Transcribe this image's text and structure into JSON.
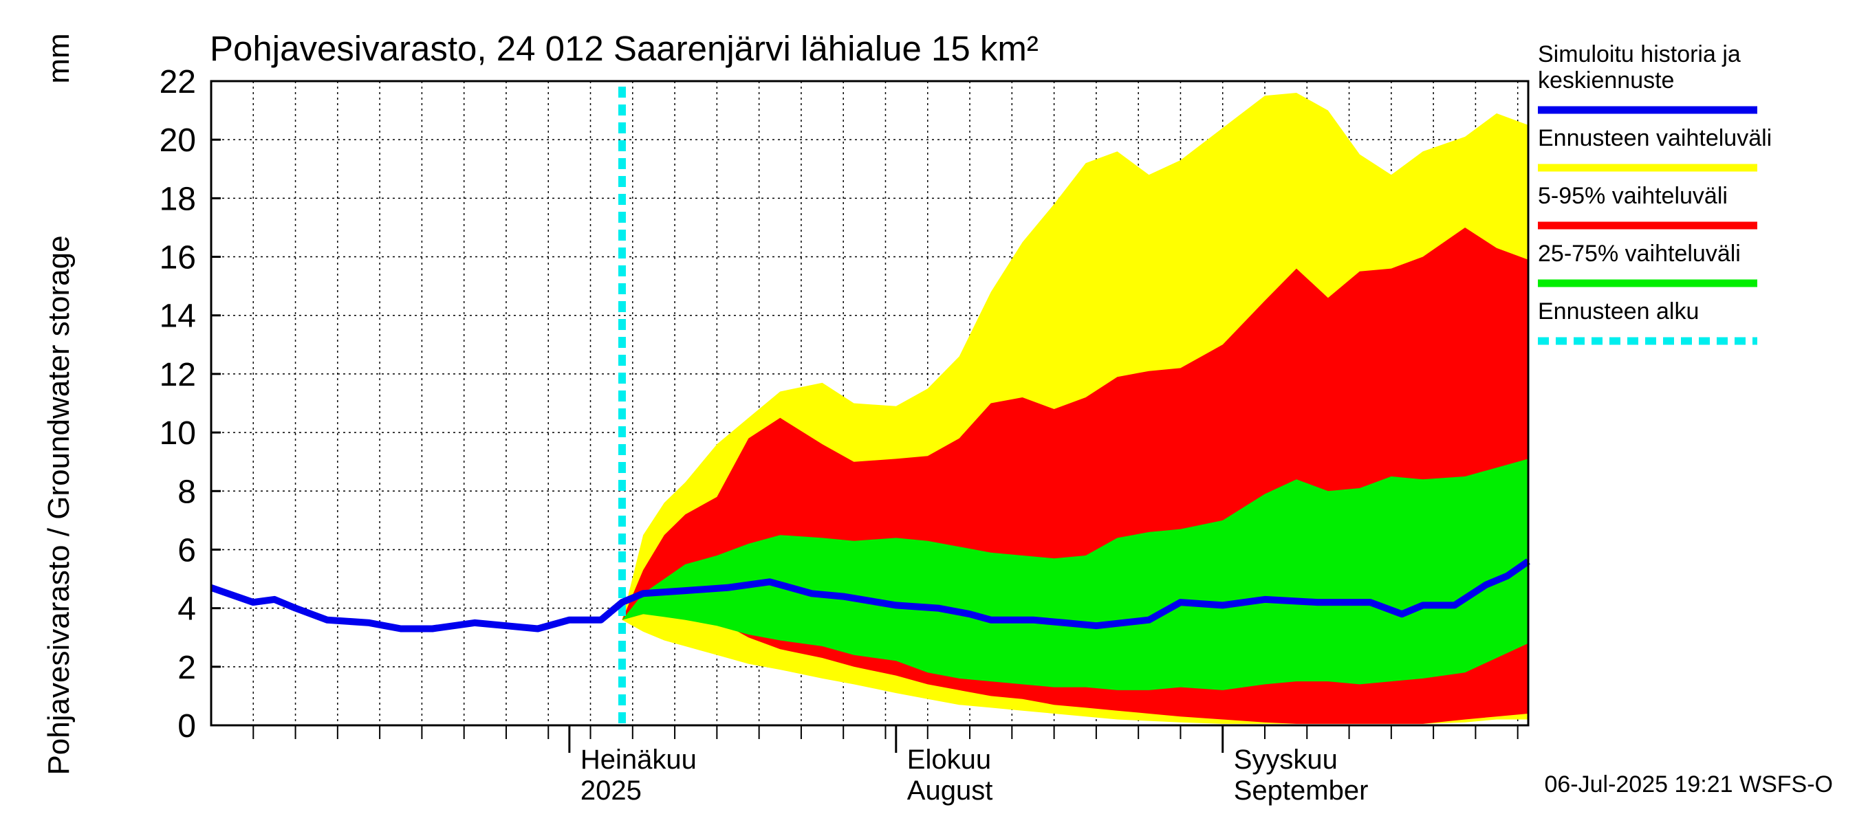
{
  "chart_data": {
    "type": "area",
    "title": "Pohjavesivarasto, 24 012 Saarenjärvi lähialue 15 km²",
    "ylabel": "Pohjavesivarasto / Groundwater storage",
    "yunit": "mm",
    "xlabel": "",
    "ylim": [
      0,
      22
    ],
    "yticks": [
      0,
      2,
      4,
      6,
      8,
      10,
      12,
      14,
      16,
      18,
      20,
      22
    ],
    "xlim": [
      "2025-05-28",
      "2025-09-30"
    ],
    "month_labels": [
      {
        "date": "2025-07-01",
        "line1": "Heinäkuu",
        "line2": "2025"
      },
      {
        "date": "2025-08-01",
        "line1": "Elokuu",
        "line2": "August"
      },
      {
        "date": "2025-09-01",
        "line1": "Syyskuu",
        "line2": "September"
      }
    ],
    "forecast_start": "2025-07-06",
    "grid": true,
    "legend_position": "right",
    "timestamp": "06-Jul-2025 19:21 WSFS-O",
    "colors": {
      "median": "#0000ee",
      "full_range": "#ffff00",
      "p5_95": "#ff0000",
      "p25_75": "#00ee00",
      "forecast_start": "#00eeee"
    },
    "series": [
      {
        "name": "Simuloitu historia ja keskiennuste",
        "key": "median",
        "x": [
          "2025-05-28",
          "2025-06-01",
          "2025-06-03",
          "2025-06-05",
          "2025-06-08",
          "2025-06-12",
          "2025-06-15",
          "2025-06-18",
          "2025-06-22",
          "2025-06-25",
          "2025-06-28",
          "2025-07-01",
          "2025-07-04",
          "2025-07-06",
          "2025-07-08",
          "2025-07-12",
          "2025-07-16",
          "2025-07-20",
          "2025-07-24",
          "2025-07-27",
          "2025-08-01",
          "2025-08-05",
          "2025-08-08",
          "2025-08-10",
          "2025-08-14",
          "2025-08-17",
          "2025-08-20",
          "2025-08-25",
          "2025-08-28",
          "2025-09-01",
          "2025-09-05",
          "2025-09-10",
          "2025-09-15",
          "2025-09-18",
          "2025-09-20",
          "2025-09-23",
          "2025-09-26",
          "2025-09-28",
          "2025-09-30"
        ],
        "y": [
          4.7,
          4.2,
          4.3,
          4.0,
          3.6,
          3.5,
          3.3,
          3.3,
          3.5,
          3.4,
          3.3,
          3.6,
          3.6,
          4.2,
          4.5,
          4.6,
          4.7,
          4.9,
          4.5,
          4.4,
          4.1,
          4.0,
          3.8,
          3.6,
          3.6,
          3.5,
          3.4,
          3.6,
          4.2,
          4.1,
          4.3,
          4.2,
          4.2,
          3.8,
          4.1,
          4.1,
          4.8,
          5.1,
          5.6
        ]
      },
      {
        "name": "Ennusteen vaihteluväli",
        "key": "full_range",
        "x": [
          "2025-07-06",
          "2025-07-08",
          "2025-07-10",
          "2025-07-12",
          "2025-07-15",
          "2025-07-18",
          "2025-07-21",
          "2025-07-25",
          "2025-07-28",
          "2025-08-01",
          "2025-08-04",
          "2025-08-07",
          "2025-08-10",
          "2025-08-13",
          "2025-08-16",
          "2025-08-19",
          "2025-08-22",
          "2025-08-25",
          "2025-08-28",
          "2025-09-01",
          "2025-09-05",
          "2025-09-08",
          "2025-09-11",
          "2025-09-14",
          "2025-09-17",
          "2025-09-20",
          "2025-09-24",
          "2025-09-27",
          "2025-09-30"
        ],
        "upper": [
          3.6,
          6.5,
          7.6,
          8.3,
          9.6,
          10.5,
          11.4,
          11.7,
          11.0,
          10.9,
          11.5,
          12.6,
          14.8,
          16.5,
          17.8,
          19.2,
          19.6,
          18.8,
          19.3,
          20.4,
          21.5,
          21.6,
          21.0,
          19.5,
          18.8,
          19.6,
          20.1,
          20.9,
          20.5
        ],
        "lower": [
          3.6,
          3.2,
          2.9,
          2.7,
          2.4,
          2.1,
          1.9,
          1.6,
          1.4,
          1.1,
          0.9,
          0.7,
          0.6,
          0.5,
          0.4,
          0.3,
          0.2,
          0.15,
          0.1,
          0.05,
          0.05,
          0.05,
          0.05,
          0.05,
          0.05,
          0.05,
          0.1,
          0.2,
          0.2
        ]
      },
      {
        "name": "5-95% vaihteluväli",
        "key": "p5_95",
        "x": [
          "2025-07-06",
          "2025-07-08",
          "2025-07-10",
          "2025-07-12",
          "2025-07-15",
          "2025-07-18",
          "2025-07-21",
          "2025-07-25",
          "2025-07-28",
          "2025-08-01",
          "2025-08-04",
          "2025-08-07",
          "2025-08-10",
          "2025-08-13",
          "2025-08-16",
          "2025-08-19",
          "2025-08-22",
          "2025-08-25",
          "2025-08-28",
          "2025-09-01",
          "2025-09-05",
          "2025-09-08",
          "2025-09-11",
          "2025-09-14",
          "2025-09-17",
          "2025-09-20",
          "2025-09-24",
          "2025-09-27",
          "2025-09-30"
        ],
        "upper": [
          3.6,
          5.3,
          6.5,
          7.2,
          7.8,
          9.8,
          10.5,
          9.6,
          9.0,
          9.1,
          9.2,
          9.8,
          11.0,
          11.2,
          10.8,
          11.2,
          11.9,
          12.1,
          12.2,
          13.0,
          14.5,
          15.6,
          14.6,
          15.5,
          15.6,
          16.0,
          17.0,
          16.3,
          15.9
        ],
        "lower": [
          3.6,
          3.8,
          3.9,
          3.9,
          3.6,
          3.0,
          2.6,
          2.3,
          2.0,
          1.7,
          1.4,
          1.2,
          1.0,
          0.9,
          0.7,
          0.6,
          0.5,
          0.4,
          0.3,
          0.2,
          0.1,
          0.05,
          0.05,
          0.05,
          0.05,
          0.05,
          0.2,
          0.3,
          0.4
        ]
      },
      {
        "name": "25-75% vaihteluväli",
        "key": "p25_75",
        "x": [
          "2025-07-06",
          "2025-07-08",
          "2025-07-10",
          "2025-07-12",
          "2025-07-15",
          "2025-07-18",
          "2025-07-21",
          "2025-07-25",
          "2025-07-28",
          "2025-08-01",
          "2025-08-04",
          "2025-08-07",
          "2025-08-10",
          "2025-08-13",
          "2025-08-16",
          "2025-08-19",
          "2025-08-22",
          "2025-08-25",
          "2025-08-28",
          "2025-09-01",
          "2025-09-05",
          "2025-09-08",
          "2025-09-11",
          "2025-09-14",
          "2025-09-17",
          "2025-09-20",
          "2025-09-24",
          "2025-09-27",
          "2025-09-30"
        ],
        "upper": [
          3.6,
          4.5,
          5.0,
          5.5,
          5.8,
          6.2,
          6.5,
          6.4,
          6.3,
          6.4,
          6.3,
          6.1,
          5.9,
          5.8,
          5.7,
          5.8,
          6.4,
          6.6,
          6.7,
          7.0,
          7.9,
          8.4,
          8.0,
          8.1,
          8.5,
          8.4,
          8.5,
          8.8,
          9.1
        ],
        "lower": [
          3.6,
          3.8,
          3.7,
          3.6,
          3.4,
          3.1,
          2.9,
          2.7,
          2.4,
          2.2,
          1.8,
          1.6,
          1.5,
          1.4,
          1.3,
          1.3,
          1.2,
          1.2,
          1.3,
          1.2,
          1.4,
          1.5,
          1.5,
          1.4,
          1.5,
          1.6,
          1.8,
          2.3,
          2.8
        ]
      }
    ]
  },
  "legend": {
    "items": [
      {
        "key": "median",
        "label_lines": [
          "Simuloitu historia ja",
          "keskiennuste"
        ],
        "style": "solid"
      },
      {
        "key": "full_range",
        "label_lines": [
          "Ennusteen vaihteluväli"
        ],
        "style": "solid"
      },
      {
        "key": "p5_95",
        "label_lines": [
          "5-95% vaihteluväli"
        ],
        "style": "solid"
      },
      {
        "key": "p25_75",
        "label_lines": [
          "25-75% vaihteluväli"
        ],
        "style": "solid"
      },
      {
        "key": "forecast_start",
        "label_lines": [
          "Ennusteen alku"
        ],
        "style": "dashed"
      }
    ]
  }
}
